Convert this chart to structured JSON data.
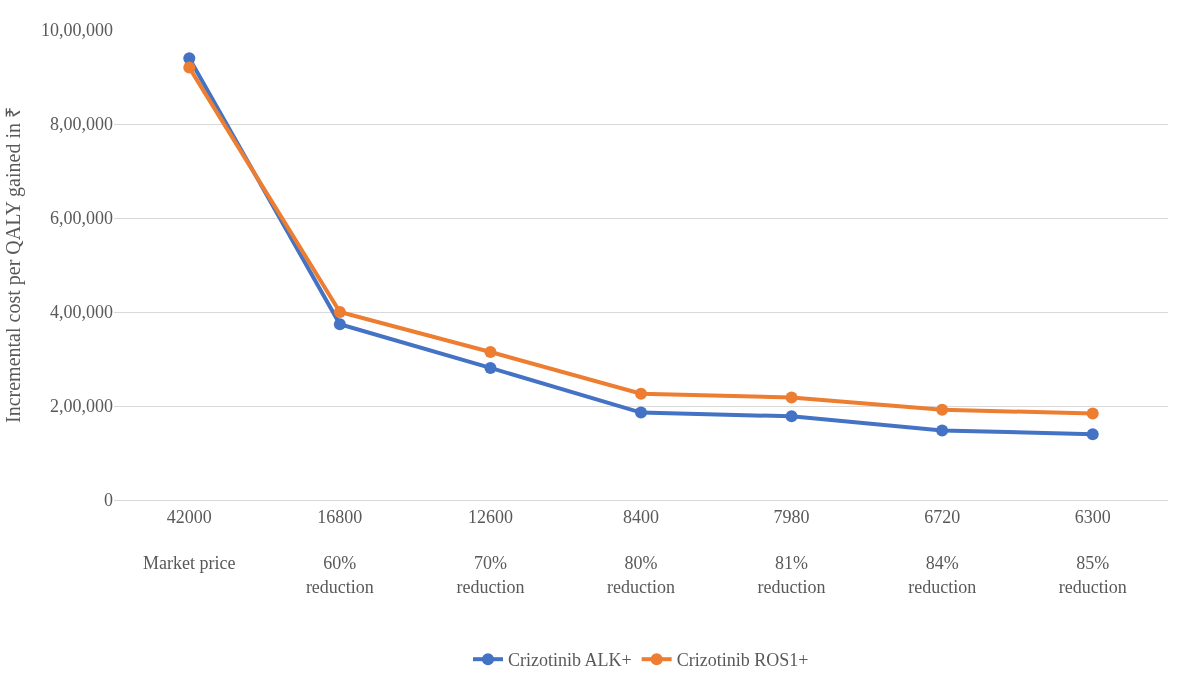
{
  "chart_data": {
    "type": "line",
    "ylabel": "Incremental cost per QALY gained in ₹",
    "categories": [
      "42000\n\nMarket price",
      "16800\n\n60%\nreduction",
      "12600\n\n70%\nreduction",
      "8400\n\n80%\nreduction",
      "7980\n\n81%\nreduction",
      "6720\n\n84%\nreduction",
      "6300\n\n85%\nreduction"
    ],
    "series": [
      {
        "name": "Crizotinib ALK+",
        "color": "#4472c4",
        "values": [
          940000,
          374000,
          281000,
          186000,
          178000,
          148000,
          140000
        ]
      },
      {
        "name": "Crizotinib ROS1+",
        "color": "#ed7d31",
        "values": [
          920000,
          400000,
          315000,
          226000,
          218000,
          192000,
          184000
        ]
      }
    ],
    "ylim": [
      0,
      1000000
    ],
    "yticks": [
      0,
      {
        "value": 200000,
        "label": "2,00,000"
      },
      {
        "value": 400000,
        "label": "4,00,000"
      },
      {
        "value": 600000,
        "label": "6,00,000"
      },
      {
        "value": 800000,
        "label": "8,00,000"
      },
      {
        "value": 1000000,
        "label": "10,00,000"
      }
    ],
    "grid": "y",
    "legend": "bottom",
    "marker": "circle",
    "line_style": "solid"
  }
}
